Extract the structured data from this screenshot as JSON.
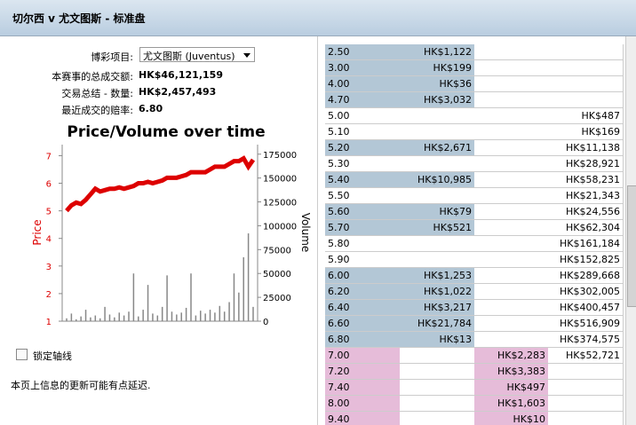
{
  "header": {
    "title": "切尔西 v 尤文图斯 - 标准盘"
  },
  "form": {
    "fields": [
      {
        "label": "博彩项目:",
        "value": "尤文图斯 (Juventus)"
      },
      {
        "label": "本赛事的总成交额:",
        "value": "HK$46,121,159"
      },
      {
        "label": "交易总结 - 数量:",
        "value": "HK$2,457,493"
      },
      {
        "label": "最近成交的赔率:",
        "value": "6.80"
      }
    ],
    "lock_axis": "锁定轴线",
    "note": "本页上信息的更新可能有点延迟."
  },
  "chart_data": {
    "type": "price-volume",
    "title": "Price/Volume over time",
    "ylabel": "Price",
    "y2label": "Volume",
    "ylim": [
      1,
      7.4
    ],
    "yticks": [
      1,
      2,
      3,
      4,
      5,
      6,
      7
    ],
    "y2lim": [
      0,
      185000
    ],
    "y2ticks": [
      0,
      25000,
      50000,
      75000,
      100000,
      125000,
      150000,
      175000
    ],
    "series": [
      {
        "name": "Price",
        "color": "#dd0000",
        "values": [
          5.0,
          5.2,
          5.3,
          5.25,
          5.4,
          5.6,
          5.8,
          5.7,
          5.75,
          5.8,
          5.8,
          5.85,
          5.8,
          5.85,
          5.9,
          6.0,
          6.0,
          6.05,
          6.0,
          6.05,
          6.1,
          6.2,
          6.2,
          6.2,
          6.25,
          6.3,
          6.4,
          6.4,
          6.4,
          6.4,
          6.5,
          6.6,
          6.6,
          6.6,
          6.7,
          6.8,
          6.8,
          6.9,
          6.6,
          6.85
        ]
      },
      {
        "name": "Volume",
        "color": "#888888",
        "axis": "y2",
        "values": [
          3000,
          8000,
          2000,
          5000,
          12000,
          4000,
          6000,
          3000,
          15000,
          7000,
          4000,
          9000,
          6000,
          10000,
          50000,
          5000,
          12000,
          38000,
          8000,
          6000,
          15000,
          48000,
          10000,
          7000,
          9000,
          14000,
          50000,
          6000,
          11000,
          8000,
          12000,
          9000,
          16000,
          10000,
          20000,
          50000,
          30000,
          67000,
          92000,
          15000
        ]
      }
    ]
  },
  "table": {
    "rows": [
      {
        "odds": "2.50",
        "side": "back",
        "back": "HK$1,122",
        "lay": null,
        "matched": null
      },
      {
        "odds": "3.00",
        "side": "back",
        "back": "HK$199",
        "lay": null,
        "matched": null
      },
      {
        "odds": "4.00",
        "side": "back",
        "back": "HK$36",
        "lay": null,
        "matched": null
      },
      {
        "odds": "4.70",
        "side": "back",
        "back": "HK$3,032",
        "lay": null,
        "matched": null
      },
      {
        "odds": "5.00",
        "side": null,
        "back": null,
        "lay": null,
        "matched": "HK$487"
      },
      {
        "odds": "5.10",
        "side": null,
        "back": null,
        "lay": null,
        "matched": "HK$169"
      },
      {
        "odds": "5.20",
        "side": "back",
        "back": "HK$2,671",
        "lay": null,
        "matched": "HK$11,138"
      },
      {
        "odds": "5.30",
        "side": null,
        "back": null,
        "lay": null,
        "matched": "HK$28,921"
      },
      {
        "odds": "5.40",
        "side": "back",
        "back": "HK$10,985",
        "lay": null,
        "matched": "HK$58,231"
      },
      {
        "odds": "5.50",
        "side": null,
        "back": null,
        "lay": null,
        "matched": "HK$21,343"
      },
      {
        "odds": "5.60",
        "side": "back",
        "back": "HK$79",
        "lay": null,
        "matched": "HK$24,556"
      },
      {
        "odds": "5.70",
        "side": "back",
        "back": "HK$521",
        "lay": null,
        "matched": "HK$62,304"
      },
      {
        "odds": "5.80",
        "side": null,
        "back": null,
        "lay": null,
        "matched": "HK$161,184"
      },
      {
        "odds": "5.90",
        "side": null,
        "back": null,
        "lay": null,
        "matched": "HK$152,825"
      },
      {
        "odds": "6.00",
        "side": "back",
        "back": "HK$1,253",
        "lay": null,
        "matched": "HK$289,668"
      },
      {
        "odds": "6.20",
        "side": "back",
        "back": "HK$1,022",
        "lay": null,
        "matched": "HK$302,005"
      },
      {
        "odds": "6.40",
        "side": "back",
        "back": "HK$3,217",
        "lay": null,
        "matched": "HK$400,457"
      },
      {
        "odds": "6.60",
        "side": "back",
        "back": "HK$21,784",
        "lay": null,
        "matched": "HK$516,909"
      },
      {
        "odds": "6.80",
        "side": "back",
        "back": "HK$13",
        "lay": null,
        "matched": "HK$374,575"
      },
      {
        "odds": "7.00",
        "side": "lay",
        "back": null,
        "lay": "HK$2,283",
        "matched": "HK$52,721"
      },
      {
        "odds": "7.20",
        "side": "lay",
        "back": null,
        "lay": "HK$3,383",
        "matched": null
      },
      {
        "odds": "7.40",
        "side": "lay",
        "back": null,
        "lay": "HK$497",
        "matched": null
      },
      {
        "odds": "8.00",
        "side": "lay",
        "back": null,
        "lay": "HK$1,603",
        "matched": null
      },
      {
        "odds": "9.40",
        "side": "lay",
        "back": null,
        "lay": "HK$10",
        "matched": null
      }
    ]
  }
}
